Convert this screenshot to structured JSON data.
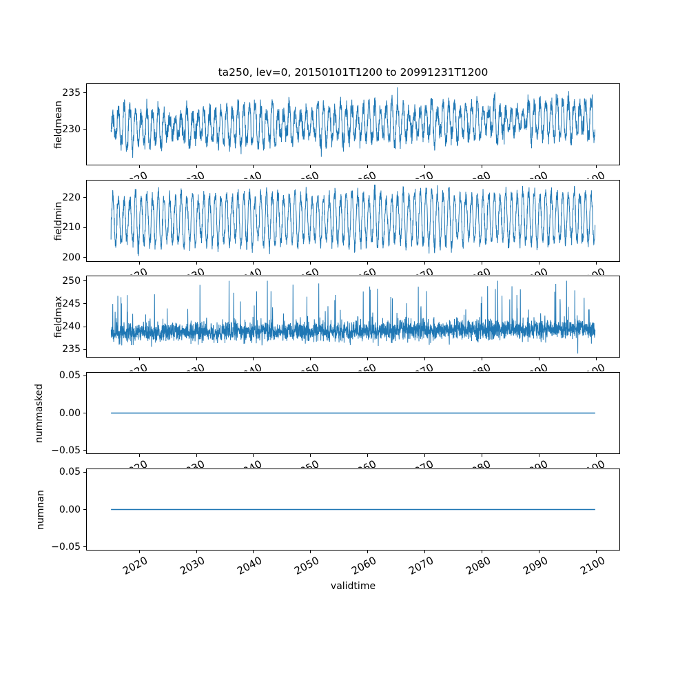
{
  "title": "ta250, lev=0, 20150101T1200 to 20991231T1200",
  "xlabel": "validtime",
  "line_color": "#1f77b4",
  "axis_color": "#000000",
  "background_color": "#ffffff",
  "x_axis": {
    "lim": [
      2010.75,
      2104.25
    ],
    "data_range": [
      2015.0,
      2100.0
    ],
    "ticks": [
      {
        "v": 2020,
        "label": "2020"
      },
      {
        "v": 2030,
        "label": "2030"
      },
      {
        "v": 2040,
        "label": "2040"
      },
      {
        "v": 2050,
        "label": "2050"
      },
      {
        "v": 2060,
        "label": "2060"
      },
      {
        "v": 2070,
        "label": "2070"
      },
      {
        "v": 2080,
        "label": "2080"
      },
      {
        "v": 2090,
        "label": "2090"
      },
      {
        "v": 2100,
        "label": "2100"
      }
    ]
  },
  "chart_data": [
    {
      "type": "line",
      "ylabel": "fieldmean",
      "ylim": [
        225.1,
        236.3
      ],
      "yticks": [
        {
          "v": 230,
          "label": "230"
        },
        {
          "v": 235,
          "label": "235"
        }
      ],
      "series": {
        "kind": "seasonal",
        "seed": 7,
        "points_per_year": 36,
        "base": 230.2,
        "trend_total": 1.3,
        "amp_base": 2.1,
        "amp_var": 0.9,
        "noise": 0.6,
        "peak_sharpness": 0.7,
        "down_spike_prob": 0.003,
        "down_spike_mag": 2.5,
        "up_spike_prob": 0.004,
        "up_spike_mag": 1.5,
        "approx_min": 225.9,
        "approx_max": 236.4
      }
    },
    {
      "type": "line",
      "ylabel": "fieldmin",
      "ylim": [
        198.6,
        225.9
      ],
      "yticks": [
        {
          "v": 200,
          "label": "200"
        },
        {
          "v": 210,
          "label": "210"
        },
        {
          "v": 220,
          "label": "220"
        }
      ],
      "series": {
        "kind": "seasonal",
        "seed": 13,
        "points_per_year": 36,
        "base": 212.4,
        "trend_total": 0.9,
        "amp_base": 8.0,
        "amp_var": 1.6,
        "noise": 1.25,
        "peak_sharpness": 0.85,
        "down_spike_prob": 0.01,
        "down_spike_mag": 2.5,
        "up_spike_prob": 0.006,
        "up_spike_mag": 1.8,
        "approx_min": 200.3,
        "approx_max": 224.5
      }
    },
    {
      "type": "line",
      "ylabel": "fieldmax",
      "ylim": [
        233.2,
        251.2
      ],
      "yticks": [
        {
          "v": 235,
          "label": "235"
        },
        {
          "v": 240,
          "label": "240"
        },
        {
          "v": 245,
          "label": "245"
        },
        {
          "v": 250,
          "label": "250"
        }
      ],
      "series": {
        "kind": "noisy_spikes",
        "seed": 5,
        "points_per_year": 36,
        "base": 238.6,
        "trend_total": 0.8,
        "noise": 1.1,
        "spike_prob": 0.055,
        "spike_scale": 11.0,
        "spike_power": 2.2,
        "down_spike_prob": 0.012,
        "down_spike_mag": 3.0,
        "approx_min": 233.9,
        "approx_max": 250.2
      }
    },
    {
      "type": "line",
      "ylabel": "nummasked",
      "ylim": [
        -0.055,
        0.055
      ],
      "yticks": [
        {
          "v": -0.05,
          "label": "−0.05"
        },
        {
          "v": 0,
          "label": "0.00"
        },
        {
          "v": 0.05,
          "label": "0.05"
        }
      ],
      "series": {
        "kind": "constant",
        "value": 0
      }
    },
    {
      "type": "line",
      "ylabel": "numnan",
      "ylim": [
        -0.055,
        0.055
      ],
      "yticks": [
        {
          "v": -0.05,
          "label": "−0.05"
        },
        {
          "v": 0,
          "label": "0.00"
        },
        {
          "v": 0.05,
          "label": "0.05"
        }
      ],
      "series": {
        "kind": "constant",
        "value": 0
      }
    }
  ]
}
